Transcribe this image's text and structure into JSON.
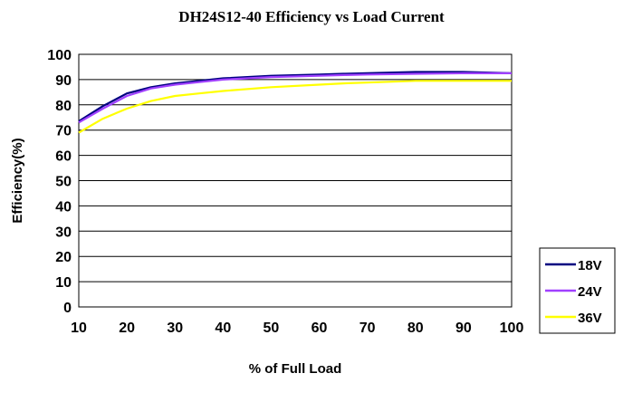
{
  "chart_data": {
    "type": "line",
    "title": "DH24S12-40 Efficiency vs Load Current",
    "xlabel": "% of Full Load",
    "ylabel": "Efficiency(%)",
    "xlim": [
      10,
      100
    ],
    "ylim": [
      0,
      100
    ],
    "xticks": [
      "10",
      "20",
      "30",
      "40",
      "50",
      "60",
      "70",
      "80",
      "90",
      "100"
    ],
    "yticks": [
      "0",
      "10",
      "20",
      "30",
      "40",
      "50",
      "60",
      "70",
      "80",
      "90",
      "100"
    ],
    "grid": "horizontal",
    "legend_position": "bottom-right",
    "series": [
      {
        "name": "18V",
        "color": "#000080",
        "x": [
          10,
          15,
          20,
          25,
          30,
          35,
          40,
          50,
          60,
          65,
          70,
          80,
          90,
          100
        ],
        "y": [
          73.5,
          79.5,
          84.5,
          87.0,
          88.5,
          89.5,
          90.5,
          91.5,
          92.0,
          92.3,
          92.5,
          93.0,
          93.0,
          92.5
        ]
      },
      {
        "name": "24V",
        "color": "#a040ff",
        "x": [
          10,
          15,
          20,
          25,
          30,
          35,
          40,
          50,
          60,
          65,
          70,
          80,
          90,
          100
        ],
        "y": [
          73.0,
          78.5,
          83.5,
          86.5,
          88.0,
          89.0,
          90.0,
          91.0,
          91.5,
          91.8,
          92.0,
          92.3,
          92.5,
          92.5
        ]
      },
      {
        "name": "36V",
        "color": "#ffff00",
        "x": [
          10,
          15,
          20,
          25,
          30,
          35,
          40,
          50,
          60,
          65,
          70,
          80,
          90,
          100
        ],
        "y": [
          69.0,
          74.5,
          78.5,
          81.5,
          83.5,
          84.5,
          85.5,
          87.0,
          88.0,
          88.5,
          88.8,
          89.5,
          89.5,
          89.5
        ]
      }
    ]
  }
}
